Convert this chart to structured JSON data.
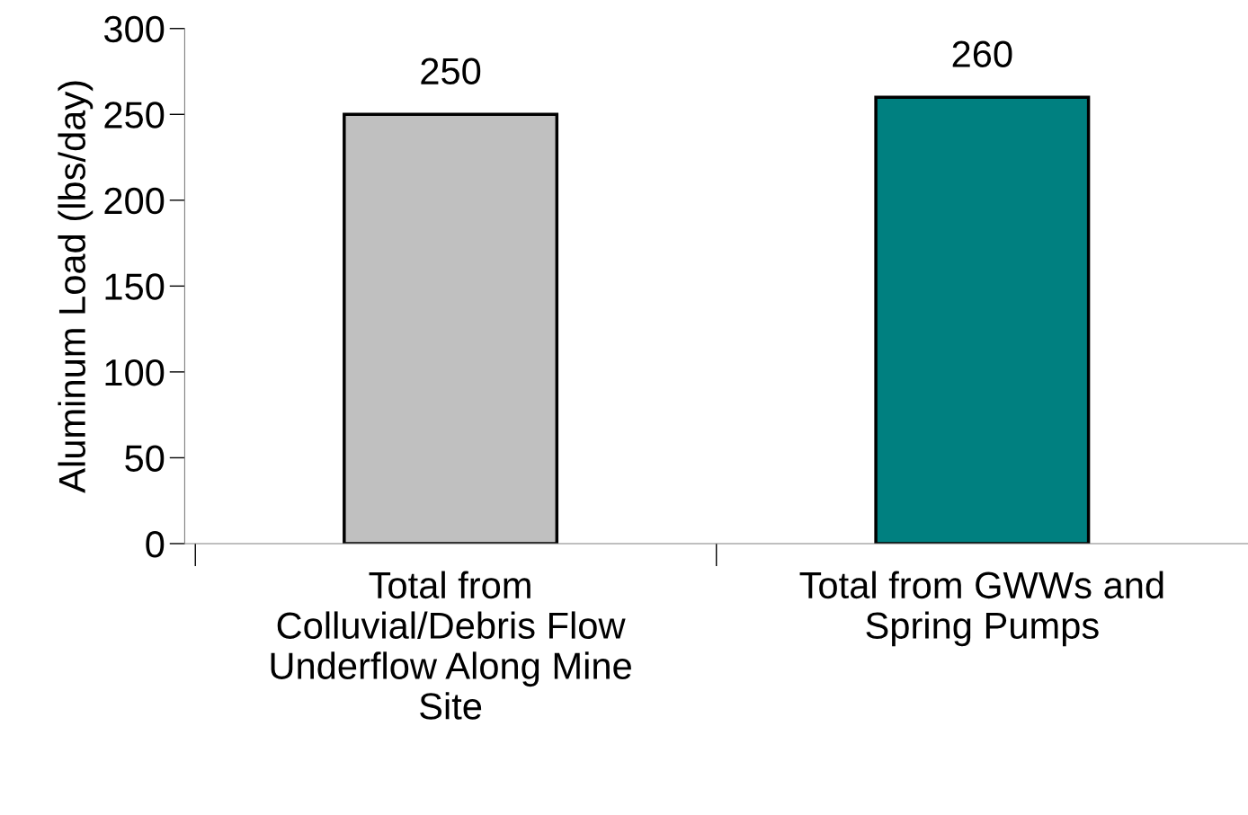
{
  "chart_data": {
    "type": "bar",
    "ylabel": "Aluminum Load (lbs/day)",
    "categories": [
      "Total from Colluvial/Debris Flow Underflow Along Mine Site",
      "Total from GWWs and Spring Pumps"
    ],
    "values": [
      250,
      260
    ],
    "colors": [
      "#c0c0c0",
      "#008080"
    ],
    "ylim": [
      0,
      300
    ],
    "yticks": [
      0,
      50,
      100,
      150,
      200,
      250,
      300
    ],
    "grid": false,
    "data_labels": true
  }
}
